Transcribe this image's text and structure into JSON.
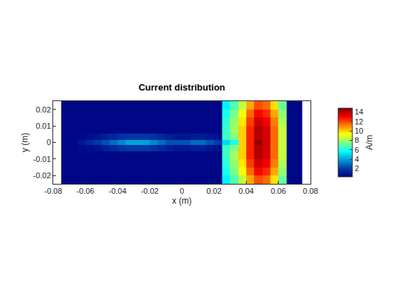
{
  "chart_data": {
    "type": "heatmap",
    "title": "Current distribution",
    "x_label": "x (m)",
    "y_label": "y (m)",
    "xlim": [
      -0.08,
      0.08
    ],
    "ylim": [
      -0.025,
      0.025
    ],
    "xticks": [
      -0.08,
      -0.06,
      -0.04,
      -0.02,
      0,
      0.02,
      0.04,
      0.06,
      0.08
    ],
    "yticks": [
      -0.02,
      -0.01,
      0,
      0.01,
      0.02
    ],
    "grid": false,
    "x": [
      -0.0725,
      -0.0675,
      -0.0625,
      -0.0575,
      -0.0525,
      -0.0475,
      -0.0425,
      -0.0375,
      -0.0325,
      -0.0275,
      -0.0225,
      -0.0175,
      -0.0125,
      -0.0075,
      -0.0025,
      0.0025,
      0.0075,
      0.0125,
      0.0175,
      0.0225,
      0.0275,
      0.0325,
      0.0375,
      0.0425,
      0.0475,
      0.0525,
      0.0575,
      0.0625,
      0.0675,
      0.0725
    ],
    "y": [
      -0.0225,
      -0.0175,
      -0.0125,
      -0.0075,
      -0.003,
      0,
      0.003,
      0.0075,
      0.0125,
      0.0175,
      0.0225
    ],
    "z": [
      [
        0.5,
        0.5,
        0.5,
        0.5,
        0.5,
        0.5,
        0.5,
        0.5,
        0.5,
        0.5,
        0.5,
        0.5,
        0.5,
        0.5,
        0.5,
        0.5,
        0.5,
        0.5,
        0.5,
        0.5,
        5.5,
        6.8,
        8.5,
        10.6,
        11.9,
        11.5,
        9.8,
        7.2,
        0.5,
        0.5
      ],
      [
        0.5,
        0.5,
        0.5,
        0.5,
        0.5,
        0.5,
        0.5,
        0.5,
        0.5,
        0.5,
        0.5,
        0.5,
        0.5,
        0.5,
        0.5,
        0.5,
        0.5,
        0.5,
        0.5,
        0.5,
        6.0,
        7.4,
        9.2,
        11.5,
        12.9,
        12.4,
        10.6,
        7.8,
        0.5,
        0.5
      ],
      [
        0.5,
        0.5,
        0.5,
        0.5,
        0.5,
        0.5,
        0.5,
        0.5,
        0.5,
        0.5,
        0.5,
        0.5,
        0.5,
        0.5,
        0.5,
        0.5,
        0.5,
        0.5,
        0.5,
        0.5,
        6.3,
        7.8,
        9.7,
        12.1,
        13.6,
        13.1,
        11.2,
        8.2,
        0.5,
        0.5
      ],
      [
        0.5,
        0.5,
        0.5,
        0.5,
        0.5,
        0.5,
        0.5,
        0.5,
        0.5,
        0.5,
        0.5,
        0.5,
        0.5,
        0.5,
        0.5,
        0.5,
        0.5,
        0.5,
        0.5,
        0.5,
        6.5,
        8,
        10,
        12.5,
        14,
        13.5,
        11.5,
        8.5,
        0.5,
        0.5
      ],
      [
        0.5,
        0.5,
        0.6,
        0.7,
        0.9,
        1.2,
        1.5,
        1.8,
        2,
        2,
        2,
        1.8,
        1.5,
        1.2,
        1,
        1,
        1.2,
        1.2,
        1,
        0.8,
        6.5,
        7.5,
        10,
        12.5,
        14,
        13.5,
        11.5,
        8.5,
        0.5,
        0.5
      ],
      [
        0.5,
        0.5,
        1,
        1.5,
        2,
        2.5,
        3,
        3.5,
        4,
        4,
        4,
        3.5,
        3,
        2.5,
        2.5,
        2.5,
        3,
        3,
        2.5,
        2,
        5,
        6,
        10,
        12.5,
        14.5,
        13.5,
        11.5,
        8.5,
        0.5,
        0.5
      ],
      [
        0.5,
        0.5,
        0.6,
        0.7,
        0.9,
        1.2,
        1.5,
        1.8,
        2,
        2,
        2,
        1.8,
        1.5,
        1.2,
        1,
        1,
        1.2,
        1.2,
        1,
        0.8,
        6.5,
        7.5,
        10,
        12.5,
        14,
        13.5,
        11.5,
        8.5,
        0.5,
        0.5
      ],
      [
        0.5,
        0.5,
        0.5,
        0.5,
        0.5,
        0.5,
        0.5,
        0.5,
        0.5,
        0.5,
        0.5,
        0.5,
        0.5,
        0.5,
        0.5,
        0.5,
        0.5,
        0.5,
        0.5,
        0.5,
        6.5,
        8,
        10,
        12.5,
        14,
        13.5,
        11.5,
        8.5,
        0.5,
        0.5
      ],
      [
        0.5,
        0.5,
        0.5,
        0.5,
        0.5,
        0.5,
        0.5,
        0.5,
        0.5,
        0.5,
        0.5,
        0.5,
        0.5,
        0.5,
        0.5,
        0.5,
        0.5,
        0.5,
        0.5,
        0.5,
        6.3,
        7.8,
        9.7,
        12.1,
        13.6,
        13.1,
        11.2,
        8.2,
        0.5,
        0.5
      ],
      [
        0.5,
        0.5,
        0.5,
        0.5,
        0.5,
        0.5,
        0.5,
        0.5,
        0.5,
        0.5,
        0.5,
        0.5,
        0.5,
        0.5,
        0.5,
        0.5,
        0.5,
        0.5,
        0.5,
        0.5,
        6.0,
        7.4,
        9.2,
        11.5,
        12.9,
        12.4,
        10.6,
        7.8,
        0.5,
        0.5
      ],
      [
        0.5,
        0.5,
        0.5,
        0.5,
        0.5,
        0.5,
        0.5,
        0.5,
        0.5,
        0.5,
        0.5,
        0.5,
        0.5,
        0.5,
        0.5,
        0.5,
        0.5,
        0.5,
        0.5,
        0.5,
        5.5,
        6.8,
        8.5,
        10.6,
        11.9,
        11.5,
        9.8,
        7.2,
        0.5,
        0.5
      ]
    ],
    "colorbar_label": "A/m",
    "colorbar_range": [
      0.3,
      14.8
    ],
    "colorbar_ticks": [
      2,
      4,
      6,
      8,
      10,
      12,
      14
    ]
  }
}
